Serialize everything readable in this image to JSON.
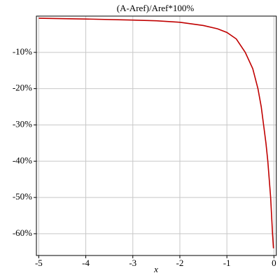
{
  "chart_data": {
    "type": "line",
    "title": "(A-Aref)/Aref*100%",
    "x_label": "x",
    "grid": true,
    "xlim": [
      -5.05,
      0.05
    ],
    "ylim": [
      -66,
      0
    ],
    "xticks": [
      -5,
      -4,
      -3,
      -2,
      -1,
      0
    ],
    "yticks": [
      {
        "value": -60,
        "label": "-60%"
      },
      {
        "value": -50,
        "label": "-50%"
      },
      {
        "value": -40,
        "label": "-40%"
      },
      {
        "value": -30,
        "label": "-30%"
      },
      {
        "value": -20,
        "label": "-20%"
      },
      {
        "value": -10,
        "label": "-10%"
      }
    ],
    "series": [
      {
        "color": "#c00000",
        "x": [
          -5,
          -4,
          -3,
          -2.5,
          -2,
          -1.5,
          -1.2,
          -1,
          -0.8,
          -0.61,
          -0.45,
          -0.34,
          -0.27,
          -0.22,
          -0.17,
          -0.13,
          -0.1,
          -0.07,
          -0.05,
          -0.03,
          -0.01
        ],
        "values": [
          -0.6,
          -0.8,
          -1.1,
          -1.3,
          -1.7,
          -2.6,
          -3.5,
          -4.5,
          -6.3,
          -10,
          -14.5,
          -20,
          -25,
          -30,
          -35,
          -40,
          -45,
          -50,
          -55,
          -60,
          -64
        ]
      }
    ]
  }
}
